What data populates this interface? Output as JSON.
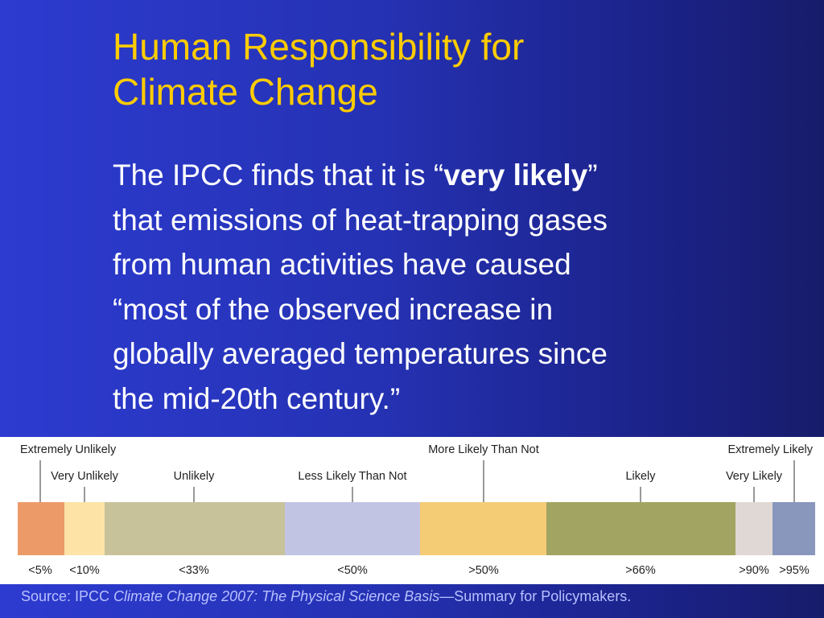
{
  "slide": {
    "title_lines": [
      "Human Responsibility for",
      "Climate Change"
    ],
    "body": {
      "line1_pre": "The IPCC finds that it is “",
      "line1_bold": "very likely",
      "line1_post": "”",
      "lines": [
        "that emissions of heat-trapping gases",
        "from human activities have caused",
        "“most of the observed increase in",
        "globally averaged temperatures since",
        "the mid-20th century.”"
      ]
    },
    "source": {
      "prefix": "Source: IPCC ",
      "italic": "Climate Change 2007: The Physical Science Basis",
      "suffix": "—Summary for Policymakers."
    }
  },
  "likelihood_scale": {
    "segments": [
      {
        "color": "#ec9b68",
        "upper_pct": 5
      },
      {
        "color": "#fde4a6",
        "upper_pct": 10
      },
      {
        "color": "#c8c29b",
        "upper_pct": 33
      },
      {
        "color": "#c2c4e4",
        "upper_pct": 50
      },
      {
        "color": "#f5cc76",
        "upper_pct": 66
      },
      {
        "color": "#a2a461",
        "upper_pct": 90
      },
      {
        "color": "#e0d8d5",
        "upper_pct": 95
      },
      {
        "color": "#8997bd",
        "upper_pct": 100
      }
    ],
    "bottom_labels": [
      "<5%",
      "<10%",
      "<33%",
      "<50%",
      ">50%",
      ">66%",
      ">90%",
      ">95%"
    ],
    "top_labels": [
      {
        "text": "Extremely Unlikely",
        "row": 1
      },
      {
        "text": "Very Unlikely",
        "row": 2
      },
      {
        "text": "Unlikely",
        "row": 2
      },
      {
        "text": "Less Likely Than Not",
        "row": 2
      },
      {
        "text": "More Likely Than Not",
        "row": 1
      },
      {
        "text": "Likely",
        "row": 2
      },
      {
        "text": "Very Likely",
        "row": 2
      },
      {
        "text": "Extremely Likely",
        "row": 1
      }
    ]
  }
}
